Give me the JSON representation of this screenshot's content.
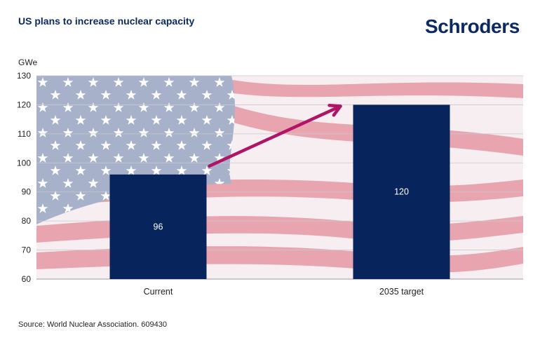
{
  "header": {
    "title": "US plans to increase nuclear capacity",
    "logo_text": "Schroders"
  },
  "footer": {
    "source": "Source: World Nuclear Association. 609430"
  },
  "colors": {
    "bar": "#08245c",
    "arrow": "#b01467",
    "brand": "#0b2a63"
  },
  "chart_data": {
    "type": "bar",
    "title": "US plans to increase nuclear capacity",
    "ylabel": "GWe",
    "xlabel": "",
    "categories": [
      "Current",
      "2035 target"
    ],
    "values": [
      96,
      120
    ],
    "data_labels": [
      "96",
      "120"
    ],
    "ylim": [
      60,
      130
    ],
    "yticks": [
      60,
      70,
      80,
      90,
      100,
      110,
      120,
      130
    ],
    "grid": true,
    "background": "US flag image",
    "annotation": "arrow from Current to 2035 target"
  }
}
